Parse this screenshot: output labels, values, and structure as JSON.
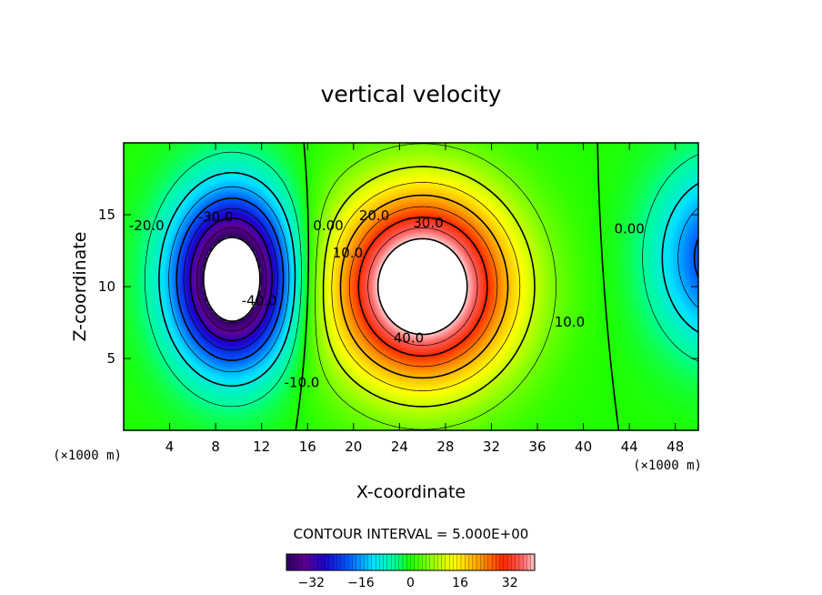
{
  "chart_data": {
    "type": "heatmap",
    "subtype": "filled-contour",
    "title": "vertical velocity",
    "xlabel": "X-coordinate",
    "ylabel": "Z-coordinate",
    "x_unit": "(×1000 m)",
    "z_unit": "(×1000 m)",
    "xlim": [
      0,
      50
    ],
    "ylim": [
      0,
      20
    ],
    "x_ticks": [
      4,
      8,
      12,
      16,
      20,
      24,
      28,
      32,
      36,
      40,
      44,
      48
    ],
    "y_ticks": [
      5,
      10,
      15
    ],
    "contour_interval_text": "CONTOUR INTERVAL = 5.000E+00",
    "contour_interval": 5.0,
    "color_range": [
      -40,
      40
    ],
    "colorbar_ticks": [
      -32,
      -16,
      0,
      16,
      32
    ],
    "cells": [
      {
        "name": "downdraft",
        "center_x": 9.5,
        "center_z": 10.5,
        "peak": -45
      },
      {
        "name": "updraft",
        "center_x": 26,
        "center_z": 10,
        "peak": 45
      },
      {
        "name": "downdraft-right-edge",
        "center_x": 52,
        "center_z": 12,
        "peak": -20
      }
    ],
    "contour_labels": [
      {
        "text": "-20.0",
        "x": 2,
        "z": 14.2
      },
      {
        "text": "-30.0",
        "x": 8,
        "z": 14.8
      },
      {
        "text": "-40.0",
        "x": 11.8,
        "z": 9
      },
      {
        "text": "-10.0",
        "x": 15.5,
        "z": 3.3
      },
      {
        "text": "0.00",
        "x": 17.8,
        "z": 14.2
      },
      {
        "text": "10.0",
        "x": 19.5,
        "z": 12.3
      },
      {
        "text": "20.0",
        "x": 21.8,
        "z": 14.9
      },
      {
        "text": "30.0",
        "x": 26.5,
        "z": 14.4
      },
      {
        "text": "40.0",
        "x": 24.8,
        "z": 6.4
      },
      {
        "text": "10.0",
        "x": 38.8,
        "z": 7.5
      },
      {
        "text": "0.00",
        "x": 44,
        "z": 14
      }
    ]
  }
}
